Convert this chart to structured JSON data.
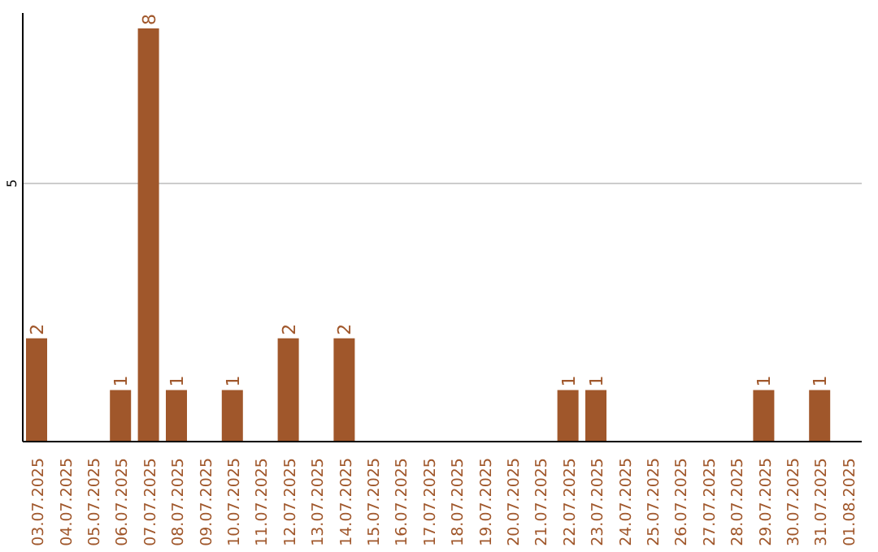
{
  "chart_data": {
    "type": "bar",
    "categories": [
      "03.07.2025",
      "04.07.2025",
      "05.07.2025",
      "06.07.2025",
      "07.07.2025",
      "08.07.2025",
      "09.07.2025",
      "10.07.2025",
      "11.07.2025",
      "12.07.2025",
      "13.07.2025",
      "14.07.2025",
      "15.07.2025",
      "16.07.2025",
      "17.07.2025",
      "18.07.2025",
      "19.07.2025",
      "20.07.2025",
      "21.07.2025",
      "22.07.2025",
      "23.07.2025",
      "24.07.2025",
      "25.07.2025",
      "26.07.2025",
      "27.07.2025",
      "28.07.2025",
      "29.07.2025",
      "30.07.2025",
      "31.07.2025",
      "01.08.2025"
    ],
    "values": [
      2,
      0,
      0,
      1,
      8,
      1,
      0,
      1,
      0,
      2,
      0,
      2,
      0,
      0,
      0,
      0,
      0,
      0,
      0,
      1,
      1,
      0,
      0,
      0,
      0,
      0,
      1,
      0,
      1,
      0
    ],
    "color": "#a0572b",
    "value_labels": [
      "2",
      null,
      null,
      "1",
      "8",
      "1",
      null,
      "1",
      null,
      "2",
      null,
      "2",
      null,
      null,
      null,
      null,
      null,
      null,
      null,
      "1",
      "1",
      null,
      null,
      null,
      null,
      null,
      "1",
      null,
      "1",
      null
    ],
    "ylim": [
      0,
      8.3
    ],
    "yticks": [
      5
    ],
    "grid": "y"
  }
}
